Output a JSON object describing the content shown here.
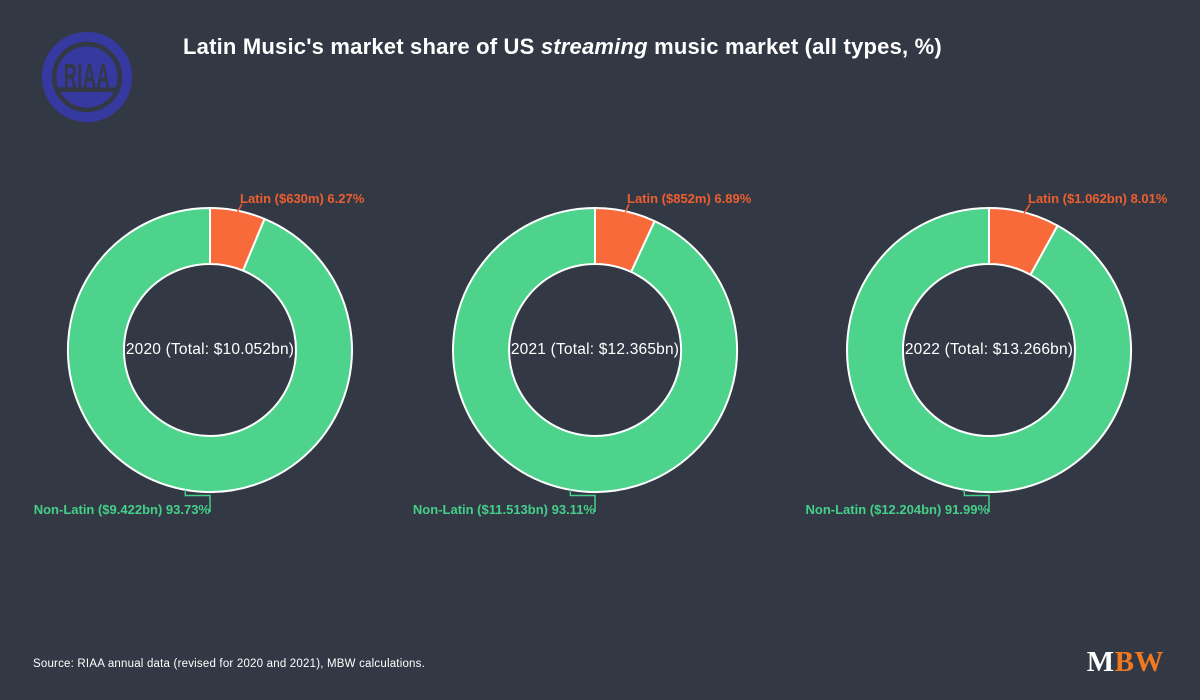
{
  "header": {
    "title_prefix": "Latin Music's market share of US ",
    "title_italic": "streaming",
    "title_suffix": " music market (all types, %)",
    "logo_riaa_text": "RIAA"
  },
  "colors": {
    "background": "#323945",
    "latin_slice": "#f96a3b",
    "non_latin_slice": "#4dd38b",
    "latin_label": "#ee5e2e",
    "non_latin_label": "#45cf88",
    "riaa_blue": "#3639a0",
    "mbw_orange": "#f1781f",
    "text": "#ffffff"
  },
  "chart_data": [
    {
      "type": "pie",
      "subtype": "donut",
      "title": "2020",
      "center_label": "2020 (Total: $10.052bn)",
      "total": "$10.052bn",
      "slices": [
        {
          "name": "Latin",
          "amount": "$630m",
          "value_pct": 6.27,
          "label": "Latin ($630m) 6.27%",
          "color": "#f96a3b"
        },
        {
          "name": "Non-Latin",
          "amount": "$9.422bn",
          "value_pct": 93.73,
          "label": "Non-Latin ($9.422bn) 93.73%",
          "color": "#4dd38b"
        }
      ]
    },
    {
      "type": "pie",
      "subtype": "donut",
      "title": "2021",
      "center_label": "2021 (Total: $12.365bn)",
      "total": "$12.365bn",
      "slices": [
        {
          "name": "Latin",
          "amount": "$852m",
          "value_pct": 6.89,
          "label": "Latin ($852m) 6.89%",
          "color": "#f96a3b"
        },
        {
          "name": "Non-Latin",
          "amount": "$11.513bn",
          "value_pct": 93.11,
          "label": "Non-Latin ($11.513bn) 93.11%",
          "color": "#4dd38b"
        }
      ]
    },
    {
      "type": "pie",
      "subtype": "donut",
      "title": "2022",
      "center_label": "2022 (Total: $13.266bn)",
      "total": "$13.266bn",
      "slices": [
        {
          "name": "Latin",
          "amount": "$1.062bn",
          "value_pct": 8.01,
          "label": "Latin ($1.062bn) 8.01%",
          "color": "#f96a3b"
        },
        {
          "name": "Non-Latin",
          "amount": "$12.204bn",
          "value_pct": 91.99,
          "label": "Non-Latin ($12.204bn) 91.99%",
          "color": "#4dd38b"
        }
      ]
    }
  ],
  "footer": {
    "source": "Source: RIAA annual data (revised for 2020 and 2021), MBW calculations.",
    "brand_m": "M",
    "brand_bw": "BW"
  }
}
